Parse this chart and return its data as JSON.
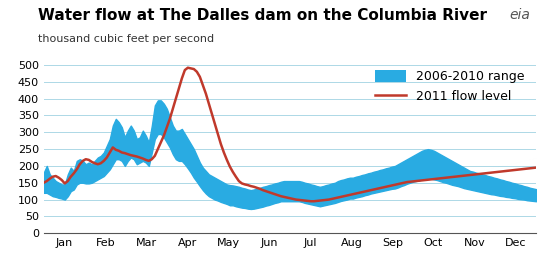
{
  "title": "Water flow at The Dalles dam on the Columbia River",
  "subtitle": "thousand cubic feet per second",
  "ylabel": "",
  "xlabel": "",
  "ylim": [
    0,
    520
  ],
  "yticks": [
    0,
    50,
    100,
    150,
    200,
    250,
    300,
    350,
    400,
    450,
    500
  ],
  "months": [
    "Jan",
    "Feb",
    "Mar",
    "Apr",
    "May",
    "Jun",
    "Jul",
    "Aug",
    "Sep",
    "Oct",
    "Nov",
    "Dec"
  ],
  "fill_color": "#29ABE2",
  "line_color": "#C0392B",
  "background_color": "#FFFFFF",
  "grid_color": "#ADD8E6",
  "title_fontsize": 11,
  "subtitle_fontsize": 8,
  "tick_fontsize": 8,
  "legend_fontsize": 9,
  "range_upper": [
    180,
    200,
    175,
    165,
    155,
    150,
    145,
    145,
    175,
    195,
    185,
    215,
    220,
    215,
    205,
    210,
    205,
    215,
    225,
    230,
    240,
    260,
    280,
    320,
    340,
    330,
    315,
    285,
    305,
    320,
    305,
    280,
    285,
    305,
    290,
    270,
    320,
    380,
    395,
    395,
    385,
    370,
    345,
    320,
    305,
    305,
    310,
    295,
    280,
    265,
    250,
    230,
    210,
    195,
    185,
    175,
    170,
    165,
    160,
    155,
    150,
    145,
    143,
    142,
    140,
    138,
    135,
    133,
    130,
    128,
    130,
    133,
    135,
    138,
    140,
    143,
    145,
    148,
    150,
    153,
    155,
    155,
    155,
    155,
    155,
    155,
    153,
    150,
    148,
    145,
    143,
    140,
    138,
    140,
    143,
    145,
    148,
    150,
    155,
    158,
    160,
    163,
    165,
    165,
    168,
    170,
    173,
    175,
    178,
    180,
    183,
    185,
    188,
    190,
    193,
    195,
    198,
    200,
    205,
    210,
    215,
    220,
    225,
    230,
    235,
    240,
    245,
    248,
    250,
    248,
    245,
    240,
    235,
    230,
    225,
    220,
    215,
    210,
    205,
    200,
    195,
    190,
    185,
    183,
    180,
    178,
    175,
    173,
    170,
    168,
    165,
    163,
    160,
    158,
    155,
    153,
    150,
    148,
    145,
    143,
    140,
    138,
    135,
    133,
    131
  ],
  "range_lower": [
    120,
    120,
    115,
    110,
    108,
    105,
    103,
    100,
    110,
    125,
    130,
    145,
    150,
    150,
    148,
    148,
    150,
    155,
    160,
    165,
    170,
    180,
    190,
    205,
    220,
    220,
    215,
    200,
    215,
    225,
    220,
    205,
    210,
    215,
    210,
    200,
    240,
    280,
    295,
    295,
    285,
    270,
    255,
    235,
    220,
    215,
    215,
    205,
    193,
    180,
    165,
    153,
    140,
    128,
    118,
    110,
    105,
    100,
    97,
    93,
    90,
    87,
    83,
    83,
    80,
    78,
    76,
    75,
    73,
    72,
    73,
    75,
    77,
    79,
    82,
    84,
    87,
    90,
    92,
    95,
    95,
    95,
    95,
    95,
    95,
    95,
    93,
    90,
    88,
    86,
    84,
    82,
    80,
    82,
    84,
    86,
    88,
    90,
    93,
    96,
    98,
    100,
    103,
    103,
    106,
    108,
    110,
    113,
    115,
    118,
    120,
    122,
    124,
    126,
    128,
    130,
    132,
    133,
    136,
    140,
    143,
    147,
    150,
    153,
    155,
    157,
    160,
    162,
    163,
    162,
    160,
    158,
    155,
    152,
    150,
    147,
    144,
    142,
    140,
    137,
    134,
    132,
    130,
    128,
    126,
    124,
    122,
    120,
    118,
    116,
    115,
    113,
    111,
    110,
    108,
    107,
    105,
    104,
    102,
    101,
    100,
    98,
    97,
    96,
    95
  ],
  "line_2011": [
    150,
    155,
    162,
    168,
    170,
    165,
    158,
    148,
    155,
    168,
    178,
    190,
    205,
    215,
    220,
    218,
    212,
    208,
    205,
    208,
    215,
    225,
    240,
    255,
    248,
    245,
    240,
    238,
    235,
    232,
    230,
    228,
    225,
    222,
    218,
    215,
    220,
    230,
    250,
    270,
    290,
    315,
    340,
    370,
    400,
    430,
    460,
    485,
    492,
    490,
    488,
    480,
    465,
    440,
    415,
    385,
    355,
    325,
    295,
    265,
    240,
    218,
    198,
    182,
    168,
    155,
    148,
    145,
    143,
    140,
    138,
    135,
    132,
    128,
    125,
    122,
    119,
    116,
    113,
    110,
    108,
    106,
    104,
    102,
    100,
    99,
    98,
    97,
    96,
    95,
    95,
    96,
    97,
    98,
    99,
    100,
    102,
    104,
    106,
    108,
    110,
    112,
    114,
    116,
    118,
    120,
    122,
    124,
    126,
    128,
    130,
    132,
    134,
    136,
    138,
    140,
    142,
    144,
    146,
    148,
    150,
    152,
    153,
    154,
    155,
    156,
    157,
    158,
    159,
    160,
    161,
    162,
    163,
    164,
    165,
    166,
    167,
    168,
    169,
    170,
    171,
    172,
    173,
    174,
    175,
    176,
    177,
    178,
    179,
    180,
    181,
    182,
    183,
    184,
    185,
    186,
    187,
    188,
    189,
    190,
    191,
    192,
    193,
    194,
    195
  ]
}
